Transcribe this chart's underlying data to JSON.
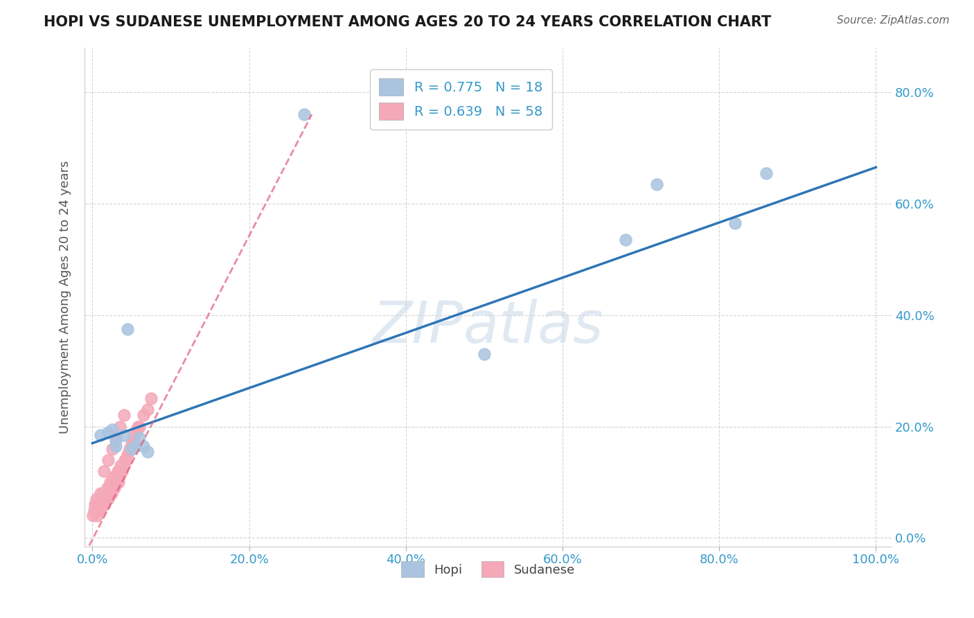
{
  "title": "HOPI VS SUDANESE UNEMPLOYMENT AMONG AGES 20 TO 24 YEARS CORRELATION CHART",
  "source": "Source: ZipAtlas.com",
  "ylabel": "Unemployment Among Ages 20 to 24 years",
  "xlim": [
    -0.01,
    1.02
  ],
  "ylim": [
    -0.015,
    0.88
  ],
  "xticks": [
    0.0,
    0.2,
    0.4,
    0.6,
    0.8,
    1.0
  ],
  "yticks": [
    0.0,
    0.2,
    0.4,
    0.6,
    0.8
  ],
  "hopi_x": [
    0.01,
    0.02,
    0.025,
    0.03,
    0.03,
    0.04,
    0.045,
    0.05,
    0.055,
    0.06,
    0.065,
    0.07,
    0.27,
    0.5,
    0.68,
    0.72,
    0.82,
    0.86
  ],
  "hopi_y": [
    0.185,
    0.19,
    0.195,
    0.175,
    0.165,
    0.185,
    0.375,
    0.16,
    0.165,
    0.18,
    0.165,
    0.155,
    0.76,
    0.33,
    0.535,
    0.635,
    0.565,
    0.655
  ],
  "sudanese_x": [
    0.001,
    0.002,
    0.003,
    0.004,
    0.005,
    0.006,
    0.007,
    0.008,
    0.009,
    0.01,
    0.011,
    0.012,
    0.013,
    0.014,
    0.015,
    0.016,
    0.017,
    0.018,
    0.019,
    0.02,
    0.021,
    0.022,
    0.023,
    0.024,
    0.025,
    0.026,
    0.027,
    0.028,
    0.029,
    0.03,
    0.031,
    0.032,
    0.033,
    0.034,
    0.035,
    0.036,
    0.038,
    0.04,
    0.041,
    0.043,
    0.045,
    0.047,
    0.05,
    0.052,
    0.055,
    0.058,
    0.06,
    0.065,
    0.07,
    0.075,
    0.008,
    0.01,
    0.015,
    0.02,
    0.025,
    0.03,
    0.035,
    0.04
  ],
  "sudanese_y": [
    0.04,
    0.05,
    0.06,
    0.06,
    0.07,
    0.04,
    0.05,
    0.06,
    0.07,
    0.05,
    0.06,
    0.07,
    0.07,
    0.08,
    0.08,
    0.06,
    0.07,
    0.08,
    0.09,
    0.07,
    0.08,
    0.09,
    0.1,
    0.08,
    0.09,
    0.1,
    0.11,
    0.09,
    0.1,
    0.1,
    0.11,
    0.12,
    0.1,
    0.11,
    0.12,
    0.13,
    0.12,
    0.13,
    0.14,
    0.14,
    0.15,
    0.16,
    0.17,
    0.18,
    0.19,
    0.2,
    0.2,
    0.22,
    0.23,
    0.25,
    0.05,
    0.08,
    0.12,
    0.14,
    0.16,
    0.18,
    0.2,
    0.22
  ],
  "hopi_line_x": [
    0.0,
    1.0
  ],
  "hopi_line_y": [
    0.17,
    0.665
  ],
  "sudanese_line_x": [
    -0.01,
    0.28
  ],
  "sudanese_line_y": [
    -0.03,
    0.76
  ],
  "hopi_color": "#aac4e0",
  "sudanese_color": "#f4a8b8",
  "hopi_line_color": "#2e75b6",
  "sudanese_line_color": "#e05a7a",
  "watermark": "ZIPatlas",
  "background_color": "#ffffff",
  "grid_color": "#d0d0d0",
  "legend1_label1": "R = 0.775",
  "legend1_n1": "N = 18",
  "legend1_label2": "R = 0.639",
  "legend1_n2": "N = 58"
}
